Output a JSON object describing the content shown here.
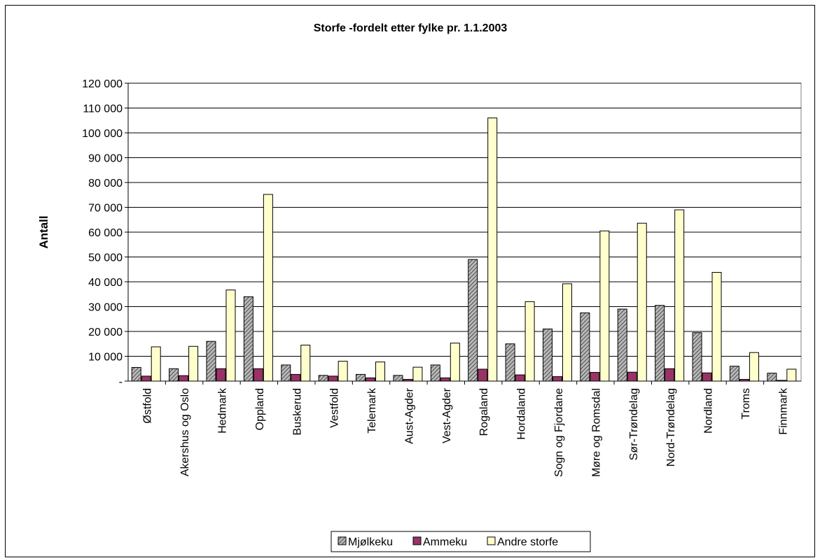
{
  "chart_data": {
    "type": "bar",
    "title": "Storfe -fordelt etter fylke pr. 1.1.2003",
    "xlabel": "",
    "ylabel": "Antall",
    "ylim": [
      0,
      120000
    ],
    "ytick_values": [
      0,
      10000,
      20000,
      30000,
      40000,
      50000,
      60000,
      70000,
      80000,
      90000,
      100000,
      110000,
      120000
    ],
    "ytick_labels": [
      "-",
      "10 000",
      "20 000",
      "30 000",
      "40 000",
      "50 000",
      "60 000",
      "70 000",
      "80 000",
      "90 000",
      "100 000",
      "110 000",
      "120 000"
    ],
    "grid": true,
    "legend_position": "bottom",
    "categories": [
      "Østfold",
      "Akershus og Oslo",
      "Hedmark",
      "Oppland",
      "Buskerud",
      "Vestfold",
      "Telemark",
      "Aust-Agder",
      "Vest-Agder",
      "Rogaland",
      "Hordaland",
      "Sogn og Fjordane",
      "Møre og Romsdal",
      "Sør-Trøndelag",
      "Nord-Trøndelag",
      "Nordland",
      "Troms",
      "Finnmark"
    ],
    "series": [
      {
        "name": "Mjølkeku",
        "color": "#a8a8a8",
        "pattern": "diagonal-hatch",
        "values": [
          5500,
          5000,
          16000,
          34000,
          6500,
          2300,
          2700,
          2300,
          6500,
          49000,
          15000,
          21000,
          27500,
          29000,
          30500,
          19500,
          6000,
          3200
        ]
      },
      {
        "name": "Ammeku",
        "color": "#993366",
        "values": [
          2000,
          2200,
          5000,
          5000,
          2700,
          2000,
          1300,
          700,
          1300,
          4800,
          2500,
          1800,
          3500,
          3600,
          5000,
          3300,
          700,
          300
        ]
      },
      {
        "name": "Andre storfe",
        "color": "#ffffcc",
        "values": [
          13800,
          14000,
          36700,
          75200,
          14500,
          8000,
          7700,
          5600,
          15300,
          106000,
          32000,
          39200,
          60500,
          63600,
          69000,
          43800,
          11500,
          4800
        ]
      }
    ]
  }
}
